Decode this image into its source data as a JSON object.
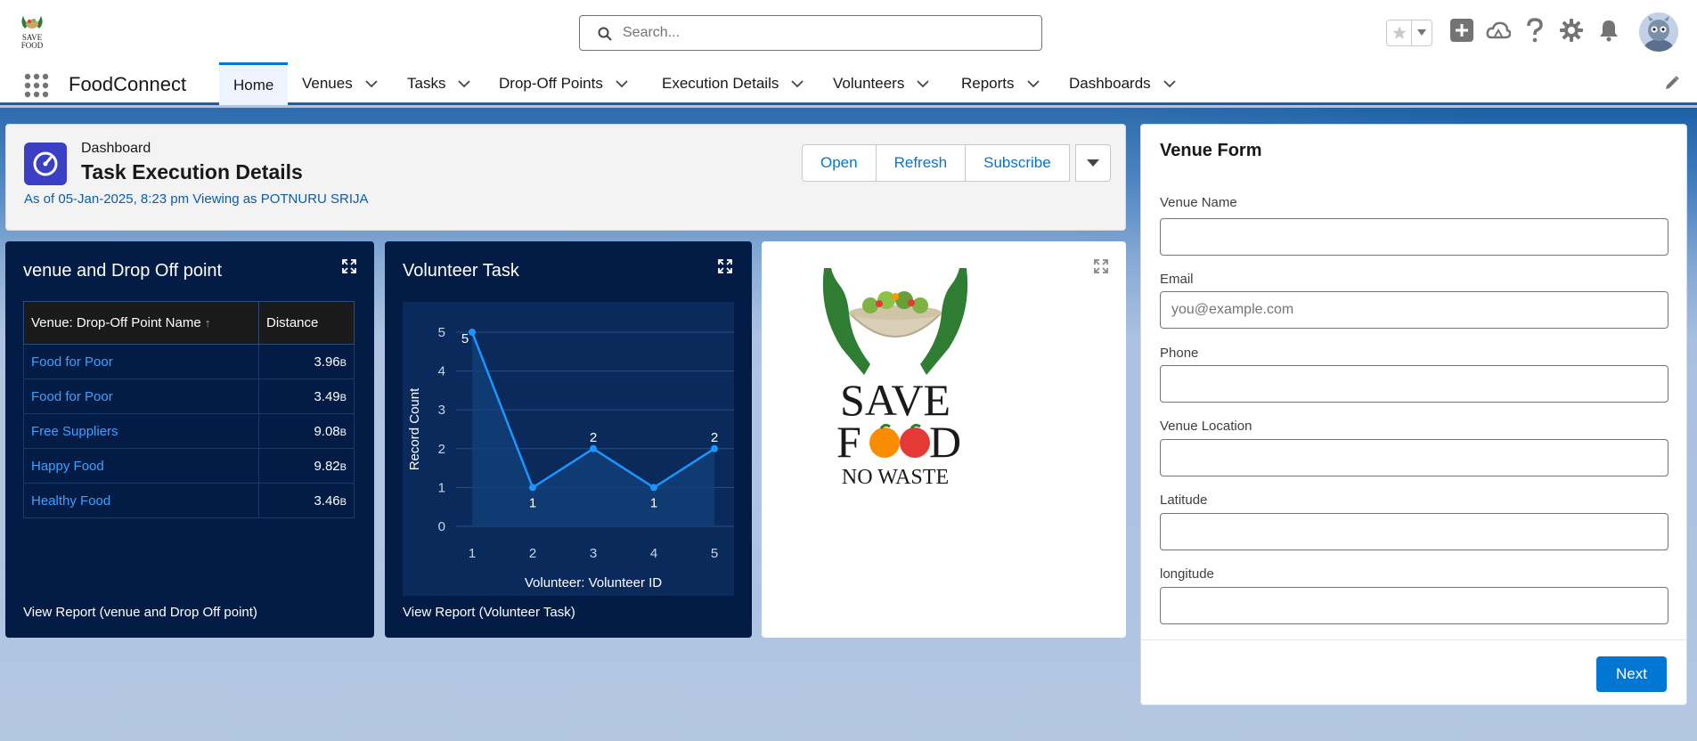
{
  "header": {
    "search_placeholder": "Search..."
  },
  "nav": {
    "app_name": "FoodConnect",
    "items": [
      "Home",
      "Venues",
      "Tasks",
      "Drop-Off Points",
      "Execution Details",
      "Volunteers",
      "Reports",
      "Dashboards"
    ]
  },
  "dashboard": {
    "type_label": "Dashboard",
    "title": "Task Execution Details",
    "as_of": "As of 05-Jan-2025, 8:23 pm Viewing as POTNURU SRIJA",
    "buttons": {
      "open": "Open",
      "refresh": "Refresh",
      "subscribe": "Subscribe"
    }
  },
  "venue_card": {
    "title": "venue and Drop Off point",
    "col_name": "Venue: Drop-Off Point Name",
    "col_distance": "Distance",
    "sort_glyph": "↑",
    "rows": [
      {
        "name": "Food for Poor",
        "distance": "3.96",
        "unit": "B"
      },
      {
        "name": "Food for Poor",
        "distance": "3.49",
        "unit": "B"
      },
      {
        "name": "Free Suppliers",
        "distance": "9.08",
        "unit": "B"
      },
      {
        "name": "Happy Food",
        "distance": "9.82",
        "unit": "B"
      },
      {
        "name": "Healthy Food",
        "distance": "3.46",
        "unit": "B"
      }
    ],
    "footer": "View Report (venue and Drop Off point)"
  },
  "volunteer_card": {
    "title": "Volunteer Task",
    "footer": "View Report (Volunteer Task)"
  },
  "chart_data": {
    "type": "line",
    "x": [
      1,
      2,
      3,
      4,
      5
    ],
    "values": [
      5,
      1,
      2,
      1,
      2
    ],
    "xlabel": "Volunteer: Volunteer ID",
    "ylabel": "Record Count",
    "ylim": [
      0,
      5
    ],
    "yticks": [
      0,
      1,
      2,
      3,
      4,
      5
    ],
    "grid": true,
    "line_color": "#1b96ff",
    "area_color": "#13407a"
  },
  "logo": {
    "line1": "SAVE",
    "line2_start": "F",
    "line2_end": "D",
    "line3": "NO WASTE",
    "mini_text1": "SAVE",
    "mini_text2": "FOOD"
  },
  "form": {
    "title": "Venue Form",
    "fields": [
      {
        "label": "Venue Name",
        "value": "",
        "placeholder": ""
      },
      {
        "label": "Email",
        "value": "",
        "placeholder": "you@example.com"
      },
      {
        "label": "Phone",
        "value": "",
        "placeholder": ""
      },
      {
        "label": "Venue Location",
        "value": "",
        "placeholder": ""
      },
      {
        "label": "Latitude",
        "value": "",
        "placeholder": ""
      },
      {
        "label": "longitude",
        "value": "",
        "placeholder": ""
      }
    ],
    "next_label": "Next"
  },
  "icons": {
    "search": "search-icon",
    "favorite": "star-icon",
    "add": "plus-icon",
    "trailhead": "cloud-icon",
    "help": "question-icon",
    "settings": "gear-icon",
    "notifications": "bell-icon",
    "expand": "expand-icon"
  },
  "colors": {
    "brand_blue": "#0176d3",
    "dark_card": "#031c45",
    "dash_icon": "#3b3fc4"
  }
}
